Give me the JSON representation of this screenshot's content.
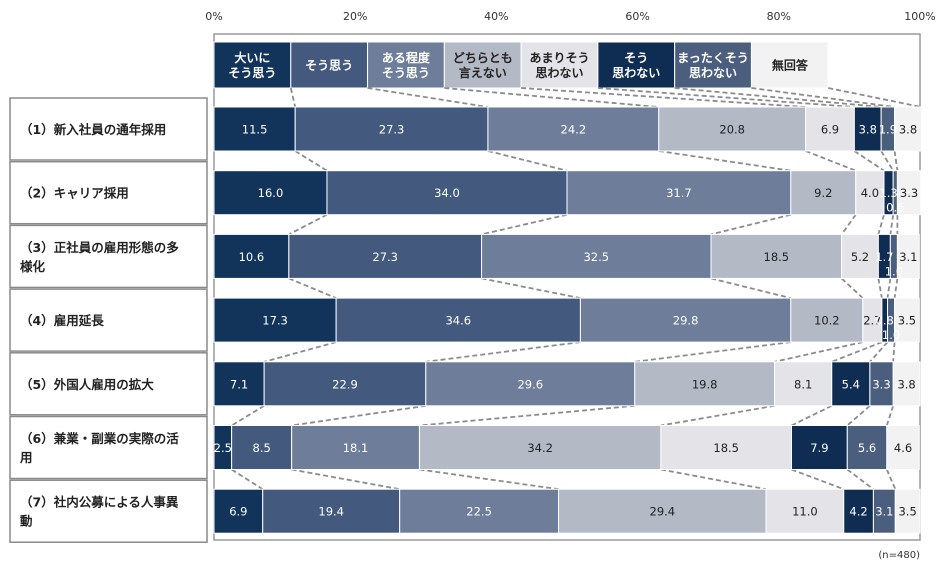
{
  "chart_data": {
    "type": "bar",
    "orientation": "horizontal",
    "stacked": true,
    "xlim": [
      0,
      100
    ],
    "x_tick_labels": [
      "0%",
      "20%",
      "40%",
      "60%",
      "80%",
      "100%"
    ],
    "categories": [
      "（1）新入社員の通年採用",
      "（2）キャリア採用",
      "（3）正社員の雇用形態の多様化",
      "（4）雇用延長",
      "（5）外国人雇用の拡大",
      "（6）兼業・副業の実際の活用",
      "（7）社内公募による人事異動"
    ],
    "series": [
      {
        "name": "大いにそう思う",
        "color": "#12335a",
        "values": [
          11.5,
          16.0,
          10.6,
          17.3,
          7.1,
          2.5,
          6.9
        ]
      },
      {
        "name": "そう思う",
        "color": "#435a7e",
        "values": [
          27.3,
          34.0,
          27.3,
          34.6,
          22.9,
          8.5,
          19.4
        ]
      },
      {
        "name": "ある程度そう思う",
        "color": "#6e7e9a",
        "values": [
          24.2,
          31.7,
          32.5,
          29.8,
          29.6,
          18.1,
          22.5
        ]
      },
      {
        "name": "どちらとも言えない",
        "color": "#b4b9c6",
        "values": [
          20.8,
          9.2,
          18.5,
          10.2,
          19.8,
          34.2,
          29.4
        ]
      },
      {
        "name": "あまりそう思わない",
        "color": "#e4e4e8",
        "values": [
          6.9,
          4.0,
          5.2,
          2.7,
          8.1,
          18.5,
          11.0
        ]
      },
      {
        "name": "そう思わない",
        "color": "#0f2d53",
        "values": [
          3.8,
          1.3,
          1.7,
          0.8,
          5.4,
          7.9,
          4.2
        ]
      },
      {
        "name": "まったくそう思わない",
        "color": "#4c5e7e",
        "values": [
          1.9,
          0.6,
          1.0,
          1.0,
          3.3,
          5.6,
          3.1
        ]
      },
      {
        "name": "無回答",
        "color": "#f2f2f2",
        "values": [
          3.8,
          3.3,
          3.1,
          3.5,
          3.8,
          4.6,
          3.5
        ]
      }
    ],
    "legend_labels": [
      [
        "大いに",
        "そう思う"
      ],
      [
        "そう思う"
      ],
      [
        "ある程度",
        "そう思う"
      ],
      [
        "どちらとも",
        "言えない"
      ],
      [
        "あまりそう",
        "思わない"
      ],
      [
        "そう",
        "思わない"
      ],
      [
        "まったくそう",
        "思わない"
      ],
      [
        "無回答"
      ]
    ],
    "category_lines": [
      [
        "（1）新入社員の通年採用"
      ],
      [
        "（2）キャリア採用"
      ],
      [
        "（3）正社員の雇用形態の多",
        "様化"
      ],
      [
        "（4）雇用延長"
      ],
      [
        "（5）外国人雇用の拡大"
      ],
      [
        "（6）兼業・副業の実際の活",
        "用"
      ],
      [
        "（7）社内公募による人事異",
        "動"
      ]
    ],
    "note": "(n=480)",
    "grid": false,
    "legend_position": "top"
  }
}
